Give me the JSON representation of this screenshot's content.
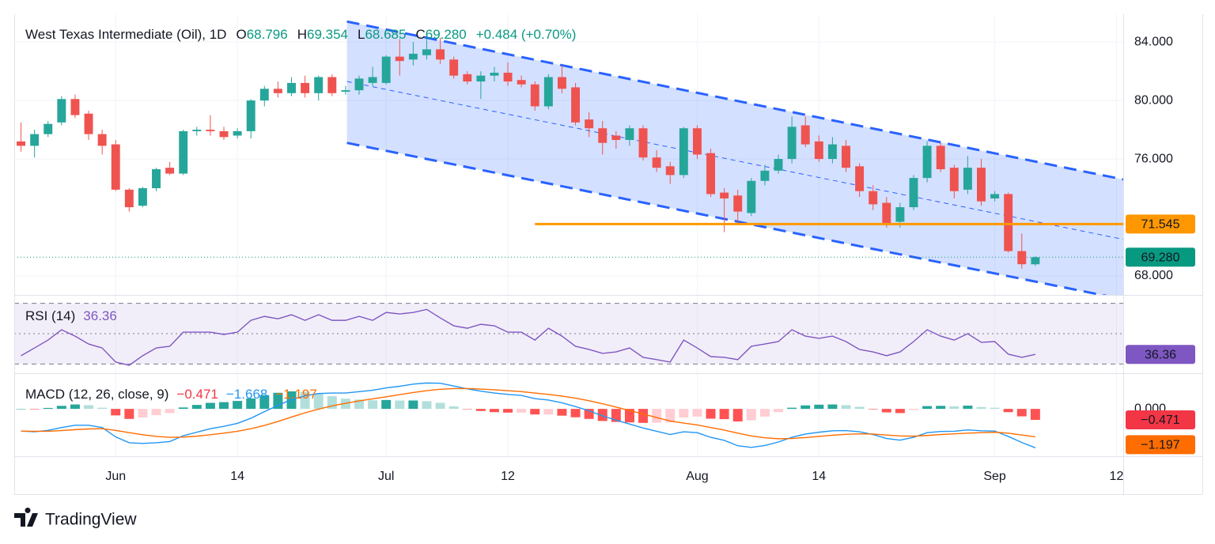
{
  "chart_data": [
    {
      "type": "candlestick",
      "title": "West Texas Intermediate (Oil), 1D",
      "legend": [
        {
          "label": "O",
          "value": "68.796"
        },
        {
          "label": "H",
          "value": "69.354"
        },
        {
          "label": "L",
          "value": "68.685"
        },
        {
          "label": "C",
          "value": "69.280"
        }
      ],
      "change": "+0.484 (+0.70%)",
      "x": [
        0,
        1,
        2,
        3,
        4,
        5,
        6,
        7,
        8,
        9,
        10,
        11,
        12,
        13,
        14,
        15,
        16,
        17,
        18,
        19,
        20,
        21,
        22,
        23,
        24,
        25,
        26,
        27,
        28,
        29,
        30,
        31,
        32,
        33,
        34,
        35,
        36,
        37,
        38,
        39,
        40,
        41,
        42,
        43,
        44,
        45,
        46,
        47,
        48,
        49,
        50,
        51,
        52,
        53,
        54,
        55,
        56,
        57,
        58,
        59,
        60,
        61,
        62,
        63,
        64,
        65,
        66,
        67,
        68,
        69,
        70,
        71,
        72,
        73,
        74,
        75
      ],
      "open": [
        77.2,
        76.9,
        77.7,
        78.5,
        80.1,
        79.1,
        77.7,
        77.0,
        73.9,
        72.8,
        74.0,
        75.4,
        75.0,
        77.9,
        78.0,
        77.9,
        77.6,
        77.9,
        80.0,
        80.8,
        80.5,
        81.2,
        80.5,
        81.6,
        80.6,
        80.7,
        81.2,
        81.2,
        83.0,
        82.8,
        83.1,
        83.5,
        82.8,
        81.8,
        81.3,
        81.7,
        81.9,
        81.4,
        81.1,
        79.6,
        81.6,
        80.9,
        78.7,
        78.1,
        77.6,
        77.3,
        78.1,
        76.1,
        75.5,
        74.9,
        78.1,
        76.4,
        73.7,
        73.5,
        72.3,
        74.5,
        75.2,
        76.0,
        78.3,
        77.2,
        76.0,
        76.9,
        75.5,
        73.8,
        73.0,
        71.7,
        72.7,
        74.7,
        76.9,
        75.4,
        73.9,
        75.4,
        73.3,
        73.6,
        69.7,
        68.796
      ],
      "high": [
        78.5,
        78.0,
        78.6,
        80.3,
        80.4,
        79.3,
        78.0,
        77.3,
        74.0,
        74.1,
        75.4,
        75.8,
        78.0,
        78.2,
        79.0,
        78.2,
        78.1,
        80.1,
        81.0,
        81.3,
        81.6,
        81.7,
        81.7,
        81.8,
        81.0,
        81.7,
        82.3,
        83.1,
        84.2,
        84.0,
        84.2,
        84.3,
        83.0,
        82.0,
        82.0,
        82.3,
        82.6,
        81.7,
        81.3,
        81.8,
        82.4,
        81.2,
        79.2,
        78.6,
        77.9,
        78.3,
        78.3,
        76.6,
        75.8,
        78.2,
        78.3,
        76.7,
        74.0,
        73.9,
        74.7,
        75.6,
        76.3,
        78.9,
        78.9,
        77.6,
        77.5,
        77.3,
        75.7,
        74.2,
        73.4,
        73.0,
        74.9,
        77.2,
        77.1,
        75.6,
        76.2,
        76.0,
        73.8,
        73.7,
        70.9,
        69.354
      ],
      "low": [
        76.5,
        76.1,
        77.5,
        78.3,
        78.8,
        77.3,
        76.3,
        73.8,
        72.4,
        72.7,
        73.8,
        74.9,
        74.9,
        77.6,
        77.6,
        77.3,
        77.4,
        77.4,
        79.6,
        80.2,
        80.3,
        80.2,
        80.0,
        80.3,
        80.4,
        80.4,
        81.0,
        81.1,
        81.7,
        82.4,
        82.8,
        82.5,
        81.5,
        81.1,
        80.1,
        81.3,
        81.0,
        80.9,
        79.3,
        79.4,
        80.5,
        78.3,
        77.5,
        76.3,
        76.7,
        76.9,
        75.9,
        75.1,
        74.3,
        74.7,
        76.0,
        73.4,
        71.0,
        71.6,
        72.1,
        74.2,
        75.0,
        75.7,
        76.8,
        75.8,
        75.7,
        75.1,
        73.4,
        72.5,
        71.3,
        71.3,
        72.5,
        74.4,
        75.1,
        73.3,
        73.6,
        72.8,
        73.1,
        69.6,
        68.5,
        68.685
      ],
      "close": [
        76.9,
        77.7,
        78.4,
        80.1,
        79.0,
        77.7,
        76.9,
        73.9,
        72.7,
        74.0,
        75.3,
        75.0,
        77.9,
        78.0,
        77.9,
        77.5,
        77.9,
        80.0,
        80.8,
        80.5,
        81.2,
        80.5,
        81.6,
        80.5,
        80.7,
        81.5,
        81.6,
        83.0,
        82.7,
        83.2,
        83.5,
        82.8,
        81.7,
        81.3,
        81.7,
        81.9,
        81.3,
        81.1,
        79.6,
        81.6,
        80.8,
        78.5,
        78.1,
        77.1,
        77.3,
        78.1,
        76.1,
        75.4,
        74.9,
        78.1,
        76.3,
        73.6,
        73.3,
        72.4,
        74.5,
        75.2,
        76.0,
        78.2,
        77.0,
        76.0,
        77.0,
        75.4,
        73.8,
        72.9,
        71.5,
        72.7,
        74.7,
        76.9,
        75.3,
        73.8,
        75.4,
        73.1,
        73.6,
        69.7,
        68.8,
        69.28
      ],
      "up_color": "#26a69a",
      "down_color": "#ef5350",
      "xlim": [
        -0.5,
        81.5
      ],
      "xticks": [
        {
          "value": 7,
          "label": "Jun"
        },
        {
          "value": 16,
          "label": "14"
        },
        {
          "value": 27,
          "label": "Jul"
        },
        {
          "value": 36,
          "label": "12"
        },
        {
          "value": 50,
          "label": "Aug"
        },
        {
          "value": 59,
          "label": "14"
        },
        {
          "value": 72,
          "label": "Sep"
        },
        {
          "value": 81,
          "label": "12"
        }
      ],
      "ylim": [
        66.7,
        85.9
      ],
      "yticks": [
        {
          "value": 68,
          "label": "68.000"
        },
        {
          "value": 76,
          "label": "76.000"
        },
        {
          "value": 80,
          "label": "80.000"
        },
        {
          "value": 84,
          "label": "84.000"
        }
      ],
      "grid": true,
      "channel": {
        "color": "#2962ff",
        "fill": "rgba(41,98,255,0.2)",
        "upper": {
          "x": [
            24.1,
            81.5
          ],
          "y": [
            85.4,
            74.6
          ]
        },
        "middle": {
          "x": [
            24.1,
            81.5
          ],
          "y": [
            81.3,
            70.5
          ]
        },
        "lower": {
          "x": [
            24.1,
            81.5
          ],
          "y": [
            77.1,
            66.4
          ]
        }
      },
      "level": {
        "value": 71.545,
        "x": [
          38,
          81.5
        ],
        "color": "#ff9800"
      },
      "last": {
        "value": 69.28,
        "label": "69.280",
        "color": "#089981"
      }
    },
    {
      "type": "line",
      "title": "RSI (14)",
      "color": "#7e57c2",
      "values": [
        35.5,
        40.6,
        45.8,
        52.6,
        48.4,
        43.2,
        40.6,
        31.3,
        29.2,
        35.5,
        40.6,
        41.7,
        51,
        51,
        51,
        49.5,
        51,
        58.8,
        61.4,
        59.8,
        62.5,
        58.8,
        62.5,
        58.8,
        58.8,
        61.4,
        58.8,
        64,
        63,
        64,
        66,
        60.4,
        55.2,
        53.6,
        56.2,
        55.2,
        51,
        51,
        45.8,
        53.6,
        48.4,
        41.7,
        39.6,
        37,
        38,
        40.6,
        34.4,
        32.9,
        31.3,
        45.8,
        40.6,
        34.9,
        34.4,
        32.9,
        41.7,
        43.2,
        44.8,
        52.6,
        48.4,
        46.9,
        48.4,
        44.8,
        39.6,
        38,
        35.5,
        38,
        44.8,
        52.6,
        48.4,
        45.8,
        50,
        44.3,
        44.8,
        36.5,
        34.4,
        36.36
      ],
      "ylim": [
        25,
        74.5
      ],
      "bands": [
        70,
        50,
        30
      ],
      "band_fill": "rgba(126,87,194,0.1)"
    },
    {
      "type": "macd",
      "title": "MACD (12, 26, close, 9)",
      "ylim": [
        -2.03,
        1.36
      ],
      "yticks": [
        {
          "value": 0,
          "label": "0.000"
        }
      ],
      "histogram": {
        "value_label": "−0.471",
        "colors": [
          "#26a69a",
          "#b2dfdb",
          "#ff5252",
          "#ffcdd2"
        ],
        "values": [
          0.0,
          -0.02,
          0.04,
          0.13,
          0.19,
          0.16,
          0.05,
          -0.28,
          -0.43,
          -0.37,
          -0.27,
          -0.18,
          0.06,
          0.17,
          0.26,
          0.29,
          0.34,
          0.45,
          0.59,
          0.69,
          0.75,
          0.73,
          0.67,
          0.55,
          0.44,
          0.4,
          0.37,
          0.38,
          0.36,
          0.36,
          0.33,
          0.26,
          0.11,
          -0.01,
          -0.09,
          -0.14,
          -0.16,
          -0.16,
          -0.24,
          -0.24,
          -0.29,
          -0.36,
          -0.43,
          -0.52,
          -0.56,
          -0.58,
          -0.6,
          -0.59,
          -0.58,
          -0.37,
          -0.33,
          -0.42,
          -0.44,
          -0.54,
          -0.49,
          -0.33,
          -0.14,
          0.05,
          0.15,
          0.18,
          0.19,
          0.16,
          0.09,
          -0.02,
          -0.15,
          -0.18,
          -0.05,
          0.12,
          0.13,
          0.11,
          0.14,
          0.08,
          0.05,
          -0.14,
          -0.32,
          -0.471
        ]
      },
      "series": [
        {
          "color": "#2196f3",
          "value_label": "−1.668",
          "values": [
            -0.95,
            -0.98,
            -0.92,
            -0.8,
            -0.7,
            -0.7,
            -0.8,
            -1.2,
            -1.45,
            -1.48,
            -1.45,
            -1.4,
            -1.15,
            -1.0,
            -0.85,
            -0.75,
            -0.62,
            -0.4,
            -0.12,
            0.15,
            0.4,
            0.56,
            0.66,
            0.68,
            0.68,
            0.74,
            0.8,
            0.9,
            0.97,
            1.06,
            1.11,
            1.1,
            0.98,
            0.86,
            0.76,
            0.68,
            0.62,
            0.58,
            0.44,
            0.38,
            0.26,
            0.1,
            -0.08,
            -0.3,
            -0.48,
            -0.65,
            -0.82,
            -0.96,
            -1.1,
            -0.98,
            -1.02,
            -1.22,
            -1.35,
            -1.58,
            -1.65,
            -1.57,
            -1.42,
            -1.22,
            -1.08,
            -1.0,
            -0.94,
            -0.93,
            -0.98,
            -1.1,
            -1.27,
            -1.34,
            -1.22,
            -1.02,
            -0.97,
            -0.96,
            -0.9,
            -0.94,
            -0.95,
            -1.18,
            -1.44,
            -1.668
          ]
        },
        {
          "color": "#ff6d00",
          "value_label": "−1.197",
          "values": [
            -0.95,
            -0.96,
            -0.96,
            -0.93,
            -0.89,
            -0.86,
            -0.85,
            -0.92,
            -1.02,
            -1.11,
            -1.18,
            -1.22,
            -1.21,
            -1.17,
            -1.11,
            -1.04,
            -0.96,
            -0.85,
            -0.71,
            -0.54,
            -0.35,
            -0.17,
            -0.01,
            0.13,
            0.24,
            0.34,
            0.43,
            0.52,
            0.61,
            0.7,
            0.78,
            0.84,
            0.87,
            0.87,
            0.85,
            0.82,
            0.78,
            0.74,
            0.68,
            0.62,
            0.55,
            0.46,
            0.35,
            0.22,
            0.08,
            -0.07,
            -0.22,
            -0.37,
            -0.52,
            -0.61,
            -0.69,
            -0.8,
            -0.91,
            -1.04,
            -1.16,
            -1.24,
            -1.28,
            -1.27,
            -1.23,
            -1.18,
            -1.13,
            -1.09,
            -1.07,
            -1.08,
            -1.12,
            -1.16,
            -1.17,
            -1.14,
            -1.1,
            -1.07,
            -1.04,
            -1.02,
            -1.0,
            -1.04,
            -1.12,
            -1.197
          ]
        }
      ]
    }
  ],
  "brand": "TradingView"
}
